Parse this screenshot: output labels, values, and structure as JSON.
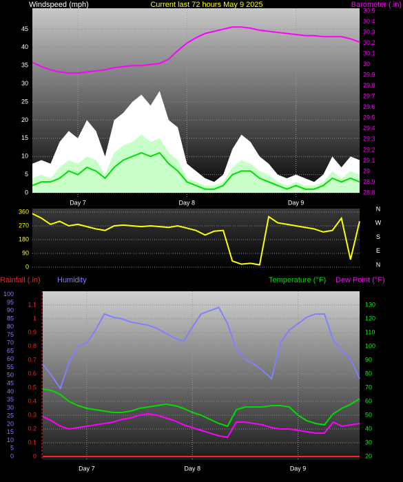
{
  "chart_data": [
    {
      "type": "line",
      "title": "Current last 72 hours May 9 2025",
      "ylabel": "Windspeed (mph)",
      "y2label": "Barometer (.in)",
      "x": [
        0,
        2,
        4,
        6,
        8,
        10,
        12,
        14,
        16,
        18,
        20,
        22,
        24,
        26,
        28,
        30,
        32,
        34,
        36,
        38,
        40,
        42,
        44,
        46,
        48,
        50,
        52,
        54,
        56,
        58,
        60,
        62,
        64,
        66,
        68,
        70,
        72
      ],
      "xlim": [
        0,
        72
      ],
      "xticks": [
        {
          "value": 10,
          "label": "Day 7"
        },
        {
          "value": 34,
          "label": "Day 8"
        },
        {
          "value": 58,
          "label": "Day 9"
        }
      ],
      "ylim": [
        0,
        50
      ],
      "yticks": [
        0,
        5,
        10,
        15,
        20,
        25,
        30,
        35,
        40,
        45
      ],
      "y2lim": [
        28.8,
        30.5
      ],
      "y2ticks": [
        28.8,
        28.9,
        29,
        29.1,
        29.2,
        29.3,
        29.4,
        29.5,
        29.6,
        29.7,
        29.8,
        29.9,
        30,
        30.1,
        30.2,
        30.3,
        30.4,
        30.5
      ],
      "grid": true,
      "series": [
        {
          "color": "#ffffff",
          "fill": true,
          "values": [
            8,
            9,
            8,
            14,
            17,
            15,
            20,
            17,
            10,
            20,
            22,
            25,
            27,
            24,
            28,
            20,
            18,
            8,
            6,
            4,
            3,
            5,
            12,
            16,
            14,
            10,
            8,
            5,
            4,
            5,
            4,
            3,
            5,
            10,
            7,
            10,
            9
          ]
        },
        {
          "color": "#c8ffc8",
          "fill": true,
          "values": [
            4,
            5,
            4,
            7,
            9,
            8,
            10,
            9,
            5,
            11,
            13,
            14,
            16,
            14,
            15,
            11,
            9,
            4,
            3,
            2,
            2,
            3,
            7,
            9,
            8,
            6,
            5,
            3,
            2,
            3,
            2,
            2,
            3,
            6,
            4,
            6,
            5
          ]
        },
        {
          "color": "#00dd00",
          "fill": false,
          "values": [
            2,
            3,
            3,
            4,
            6,
            5,
            7,
            6,
            4,
            7,
            9,
            10,
            11,
            10,
            11,
            8,
            6,
            3,
            2,
            1,
            1,
            2,
            5,
            6,
            6,
            4,
            3,
            2,
            1,
            2,
            1,
            1,
            2,
            4,
            3,
            4,
            3
          ]
        },
        {
          "color": "#ff00ff",
          "fill": false,
          "axis": "y2",
          "values": [
            30.02,
            29.98,
            29.95,
            29.93,
            29.92,
            29.92,
            29.93,
            29.94,
            29.95,
            29.97,
            29.98,
            29.99,
            29.99,
            30.0,
            30.01,
            30.05,
            30.13,
            30.2,
            30.25,
            30.29,
            30.31,
            30.33,
            30.35,
            30.35,
            30.34,
            30.32,
            30.31,
            30.3,
            30.29,
            30.28,
            30.27,
            30.27,
            30.26,
            30.26,
            30.26,
            30.24,
            30.21
          ]
        }
      ]
    },
    {
      "type": "line",
      "x": [
        0,
        2,
        4,
        6,
        8,
        10,
        12,
        14,
        16,
        18,
        20,
        22,
        24,
        26,
        28,
        30,
        32,
        34,
        36,
        38,
        40,
        42,
        44,
        46,
        48,
        50,
        52,
        54,
        56,
        58,
        60,
        62,
        64,
        66,
        68,
        70,
        72
      ],
      "xlim": [
        0,
        72
      ],
      "ylim": [
        0,
        360
      ],
      "yticks": [
        0,
        90,
        180,
        270,
        360
      ],
      "y2lim": [
        0,
        360
      ],
      "y2ticks": [
        {
          "value": 0,
          "label": "N"
        },
        {
          "value": 90,
          "label": "E"
        },
        {
          "value": 180,
          "label": "S"
        },
        {
          "value": 270,
          "label": "W"
        },
        {
          "value": 360,
          "label": "N"
        }
      ],
      "grid": true,
      "series": [
        {
          "color": "#ffff00",
          "fill": false,
          "values": [
            350,
            320,
            280,
            300,
            270,
            280,
            265,
            250,
            240,
            270,
            275,
            270,
            265,
            270,
            265,
            260,
            270,
            255,
            240,
            210,
            235,
            240,
            40,
            20,
            25,
            15,
            330,
            290,
            280,
            270,
            260,
            250,
            230,
            240,
            320,
            50,
            300
          ]
        }
      ]
    },
    {
      "type": "line",
      "x": [
        0,
        2,
        4,
        6,
        8,
        10,
        12,
        14,
        16,
        18,
        20,
        22,
        24,
        26,
        28,
        30,
        32,
        34,
        36,
        38,
        40,
        42,
        44,
        46,
        48,
        50,
        52,
        54,
        56,
        58,
        60,
        62,
        64,
        66,
        68,
        70,
        72
      ],
      "xlim": [
        0,
        72
      ],
      "xticks": [
        {
          "value": 10,
          "label": "Day 7"
        },
        {
          "value": 34,
          "label": "Day 8"
        },
        {
          "value": 58,
          "label": "Day 9"
        }
      ],
      "ylim": [
        0,
        1.2
      ],
      "yticks": [
        0,
        0.1,
        0.2,
        0.3,
        0.4,
        0.5,
        0.6,
        0.7,
        0.8,
        0.9,
        1,
        1.1
      ],
      "y2lim": [
        20,
        140
      ],
      "y2ticks": [
        20,
        30,
        40,
        50,
        60,
        70,
        80,
        90,
        100,
        110,
        120,
        130
      ],
      "y3lim": [
        0,
        102
      ],
      "y3ticks": [
        0,
        5,
        10,
        15,
        20,
        25,
        30,
        35,
        40,
        45,
        50,
        55,
        60,
        65,
        70,
        75,
        80,
        85,
        90,
        95,
        100
      ],
      "grid": true,
      "series": [
        {
          "name": "Rainfall (.in)",
          "color": "#ff2020",
          "fill": false,
          "values": [
            0,
            0,
            0,
            0,
            0,
            0,
            0,
            0,
            0,
            0,
            0,
            0,
            0,
            0,
            0,
            0,
            0,
            0,
            0,
            0,
            0,
            0,
            0,
            0,
            0,
            0,
            0,
            0,
            0,
            0,
            0,
            0,
            0,
            0,
            0,
            0,
            0
          ]
        },
        {
          "name": "Humidity",
          "color": "#8080ff",
          "fill": false,
          "axis": "y3",
          "values": [
            57,
            50,
            42,
            58,
            68,
            70,
            78,
            88,
            86,
            85,
            83,
            82,
            81,
            79,
            76,
            73,
            71,
            80,
            88,
            90,
            92,
            82,
            66,
            60,
            57,
            53,
            48,
            70,
            78,
            82,
            86,
            88,
            88,
            72,
            65,
            60,
            48
          ]
        },
        {
          "name": "Temperature (°F)",
          "color": "#00dd00",
          "fill": false,
          "axis": "y2",
          "values": [
            69,
            68,
            65,
            60,
            57,
            55,
            54,
            53,
            52,
            52,
            53,
            55,
            56,
            57,
            58,
            57,
            55,
            52,
            50,
            47,
            44,
            42,
            54,
            56,
            56,
            56,
            57,
            57,
            56,
            50,
            46,
            44,
            43,
            51,
            55,
            58,
            62
          ]
        },
        {
          "name": "Dew Point (°F)",
          "color": "#ff00ff",
          "fill": false,
          "axis": "y2",
          "values": [
            49,
            46,
            42,
            40,
            41,
            42,
            43,
            44,
            45,
            47,
            48,
            50,
            51,
            50,
            48,
            46,
            43,
            41,
            39,
            37,
            35,
            34,
            45,
            45,
            44,
            43,
            41,
            40,
            40,
            39,
            38,
            37,
            37,
            45,
            42,
            43,
            44
          ]
        }
      ]
    }
  ]
}
